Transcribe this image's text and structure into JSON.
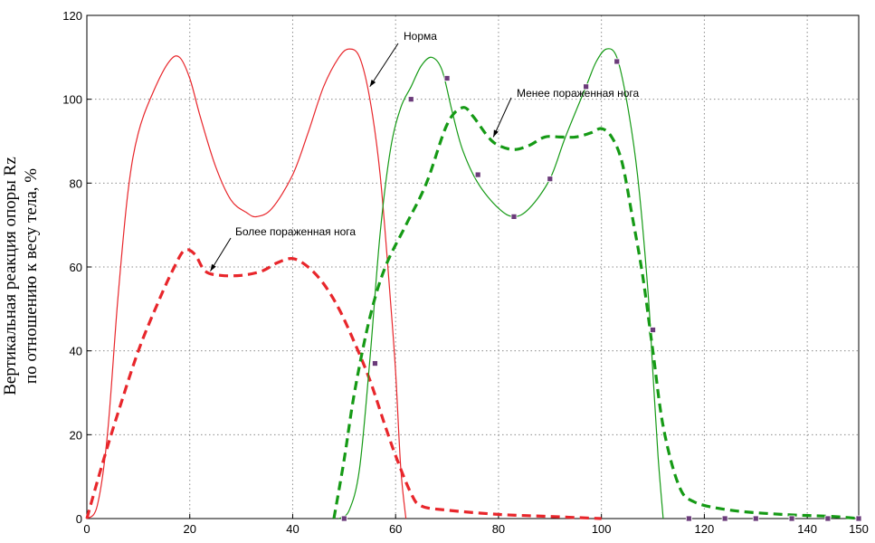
{
  "chart_data": {
    "type": "line",
    "xlim": [
      0,
      150
    ],
    "ylim": [
      0,
      120
    ],
    "xticks": [
      0,
      20,
      40,
      60,
      80,
      100,
      120,
      140,
      150
    ],
    "yticks": [
      0,
      20,
      40,
      60,
      80,
      100,
      120
    ],
    "grid": true,
    "ylabel_line1": "Вертикальная реакция опоры Rz",
    "ylabel_line2": "по отношению к весу тела, %",
    "annotations": [
      {
        "text": "Норма",
        "target": [
          55,
          103
        ]
      },
      {
        "text": "Менее пораженная нога",
        "target": [
          79,
          91
        ]
      },
      {
        "text": "Более пораженная нога",
        "target": [
          24,
          59
        ]
      }
    ],
    "series": [
      {
        "color": "#e8262b",
        "style": "solid",
        "x": [
          0,
          2,
          4,
          6,
          8,
          10,
          13,
          16,
          18,
          20,
          22,
          25,
          28,
          31,
          33,
          36,
          40,
          43,
          46,
          49,
          51,
          53,
          55,
          57,
          59,
          60,
          61,
          62
        ],
        "y": [
          0,
          3,
          20,
          52,
          78,
          92,
          102,
          109,
          110,
          105,
          96,
          84,
          76,
          73,
          72,
          74,
          82,
          92,
          103,
          110,
          112,
          110,
          100,
          82,
          52,
          35,
          12,
          0
        ]
      },
      {
        "color": "#e8262b",
        "style": "dashed",
        "x": [
          0,
          3,
          6,
          10,
          14,
          17,
          19,
          21,
          23,
          26,
          30,
          34,
          37,
          40,
          43,
          46,
          49,
          52,
          55,
          58,
          60,
          63,
          65,
          70,
          80,
          90,
          100
        ],
        "y": [
          0,
          13,
          25,
          40,
          52,
          60,
          64,
          63,
          59,
          58,
          58,
          59,
          61,
          62,
          60,
          56,
          50,
          42,
          33,
          22,
          15,
          6,
          3,
          2,
          1,
          0.5,
          0
        ]
      },
      {
        "color": "#159a15",
        "style": "solid",
        "x": [
          49,
          51,
          53,
          55,
          57,
          59,
          61,
          63,
          65,
          67,
          69,
          71,
          73,
          76,
          80,
          83,
          86,
          90,
          93,
          97,
          99,
          101,
          103,
          105,
          107,
          109,
          110,
          111,
          112
        ],
        "y": [
          0,
          2,
          12,
          38,
          68,
          88,
          98,
          103,
          108,
          110,
          107,
          97,
          88,
          80,
          74,
          72,
          74,
          81,
          91,
          103,
          109,
          112,
          110,
          99,
          82,
          55,
          35,
          15,
          0
        ]
      },
      {
        "color": "#159a15",
        "style": "dashed",
        "x": [
          48,
          50,
          52,
          55,
          58,
          62,
          66,
          70,
          73,
          75,
          78,
          80,
          83,
          86,
          89,
          92,
          95,
          98,
          100,
          102,
          104,
          106,
          108,
          110,
          112,
          115,
          118,
          125,
          135,
          145,
          150
        ],
        "y": [
          0,
          14,
          30,
          48,
          60,
          70,
          80,
          94,
          98,
          96,
          91,
          89,
          88,
          89,
          91,
          91,
          91,
          92,
          93,
          91,
          85,
          72,
          58,
          40,
          22,
          8,
          4,
          2,
          1,
          0.5,
          0
        ]
      }
    ],
    "markers": {
      "color": "#6b3b7a",
      "x": [
        50,
        56,
        63,
        70,
        76,
        83,
        90,
        97,
        103,
        110,
        117,
        124,
        130,
        137,
        144,
        150
      ],
      "y": [
        0,
        37,
        100,
        105,
        82,
        72,
        81,
        103,
        109,
        45,
        0,
        0,
        0,
        0,
        0,
        0
      ]
    }
  }
}
